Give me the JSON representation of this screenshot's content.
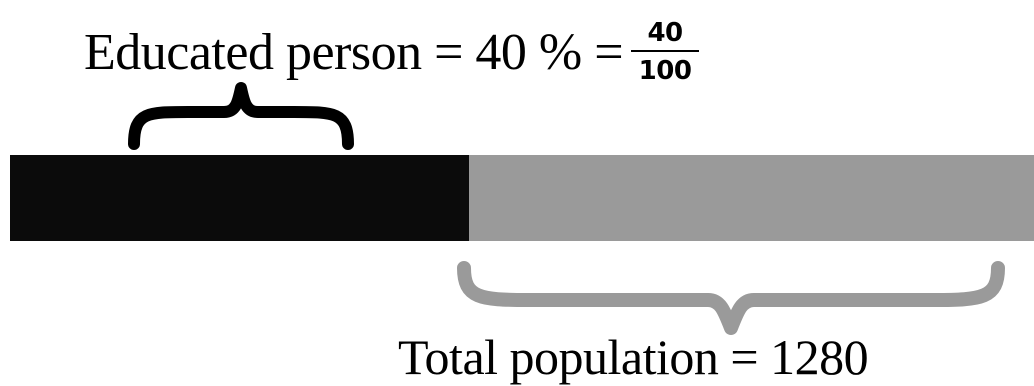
{
  "top_label": {
    "text": "Educated person = 40 % =",
    "fraction_numerator": "40",
    "fraction_denominator": "100"
  },
  "bottom_label": {
    "text": "Total population = 1280"
  },
  "bar": {
    "educated_fraction": 0.4,
    "educated_color": "#0b0b0b",
    "rest_color": "#9a9a9a"
  },
  "braces": {
    "top_color": "#000000",
    "bottom_color": "#9a9a9a"
  }
}
